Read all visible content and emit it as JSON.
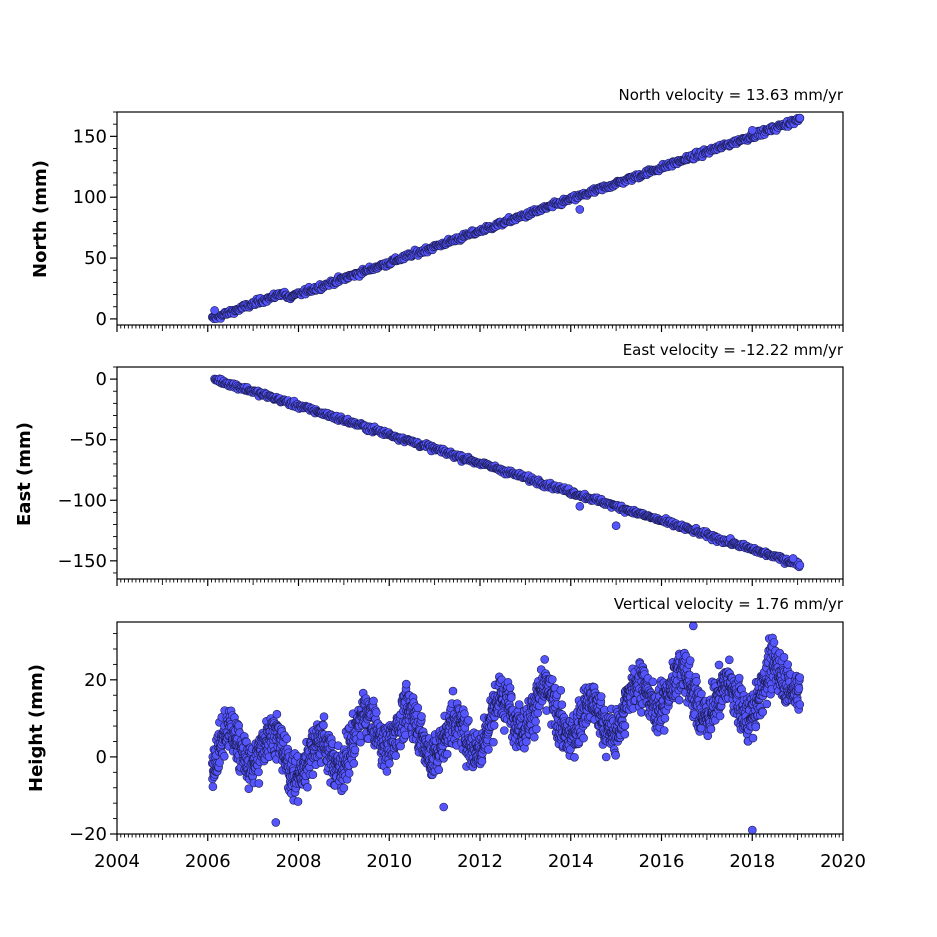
{
  "chart_data": [
    {
      "type": "scatter",
      "title": "North velocity = 13.63 mm/yr",
      "xlabel": "",
      "ylabel": "North (mm)",
      "xlim": [
        2004,
        2020
      ],
      "ylim": [
        -5,
        170
      ],
      "yticks": [
        0,
        50,
        100,
        150
      ],
      "xticks": [
        2004,
        2006,
        2008,
        2010,
        2012,
        2014,
        2016,
        2018,
        2020
      ],
      "show_xtick_labels": false,
      "marker_color": "#5555ff",
      "edge_color": "#1a1a4d",
      "series": [
        {
          "model": {
            "kind": "linear",
            "x0": 2006.1,
            "y0": 0,
            "slope": 13.63,
            "start": 2006.1,
            "end": 2019.05,
            "noise": 1.6
          },
          "segments": [
            {
              "x": 2006.1,
              "y": 0
            },
            {
              "x": 2007.7,
              "y": 22
            },
            {
              "x": 2007.75,
              "y": 17
            },
            {
              "x": 2019.05,
              "y": 164
            }
          ],
          "outliers": [
            [
              2006.15,
              7
            ],
            [
              2014.2,
              90
            ],
            [
              2018.0,
              155
            ],
            [
              2019.05,
              165
            ]
          ]
        }
      ]
    },
    {
      "type": "scatter",
      "title": "East velocity = -12.22 mm/yr",
      "xlabel": "",
      "ylabel": "East (mm)",
      "xlim": [
        2004,
        2020
      ],
      "ylim": [
        -165,
        10
      ],
      "yticks": [
        -150,
        -100,
        -50,
        0
      ],
      "ytick_labels": [
        "−150",
        "−100",
        "−50",
        "0"
      ],
      "xticks": [
        2004,
        2006,
        2008,
        2010,
        2012,
        2014,
        2016,
        2018,
        2020
      ],
      "show_xtick_labels": false,
      "marker_color": "#5555ff",
      "edge_color": "#1a1a4d",
      "series": [
        {
          "segments": [
            {
              "x": 2006.15,
              "y": 0
            },
            {
              "x": 2019.05,
              "y": -153
            }
          ],
          "model": {
            "kind": "linear",
            "noise": 1.5
          },
          "outliers": [
            [
              2014.2,
              -105
            ],
            [
              2015.0,
              -121
            ],
            [
              2018.9,
              -148
            ]
          ]
        }
      ]
    },
    {
      "type": "scatter",
      "title": "Vertical velocity = 1.76 mm/yr",
      "xlabel": "",
      "ylabel": "Height (mm)",
      "xlim": [
        2004,
        2020
      ],
      "ylim": [
        -20,
        35
      ],
      "yticks": [
        -20,
        0,
        20
      ],
      "ytick_labels": [
        "−20",
        "0",
        "20"
      ],
      "xticks": [
        2004,
        2006,
        2008,
        2010,
        2012,
        2014,
        2016,
        2018,
        2020
      ],
      "xtick_labels": [
        "2004",
        "2006",
        "2008",
        "2010",
        "2012",
        "2014",
        "2016",
        "2018",
        "2020"
      ],
      "show_xtick_labels": true,
      "marker_color": "#5555ff",
      "edge_color": "#1a1a4d",
      "series": [
        {
          "model": {
            "kind": "seasonal",
            "start": 2006.1,
            "end": 2019.05,
            "offset": 5,
            "trend": 1.76,
            "trend_origin": 2010,
            "amplitude": 5,
            "noise": 4
          },
          "outliers": [
            [
              2016.7,
              34
            ],
            [
              2018.0,
              -19
            ],
            [
              2007.5,
              -17
            ],
            [
              2011.2,
              -13
            ]
          ]
        }
      ]
    }
  ]
}
